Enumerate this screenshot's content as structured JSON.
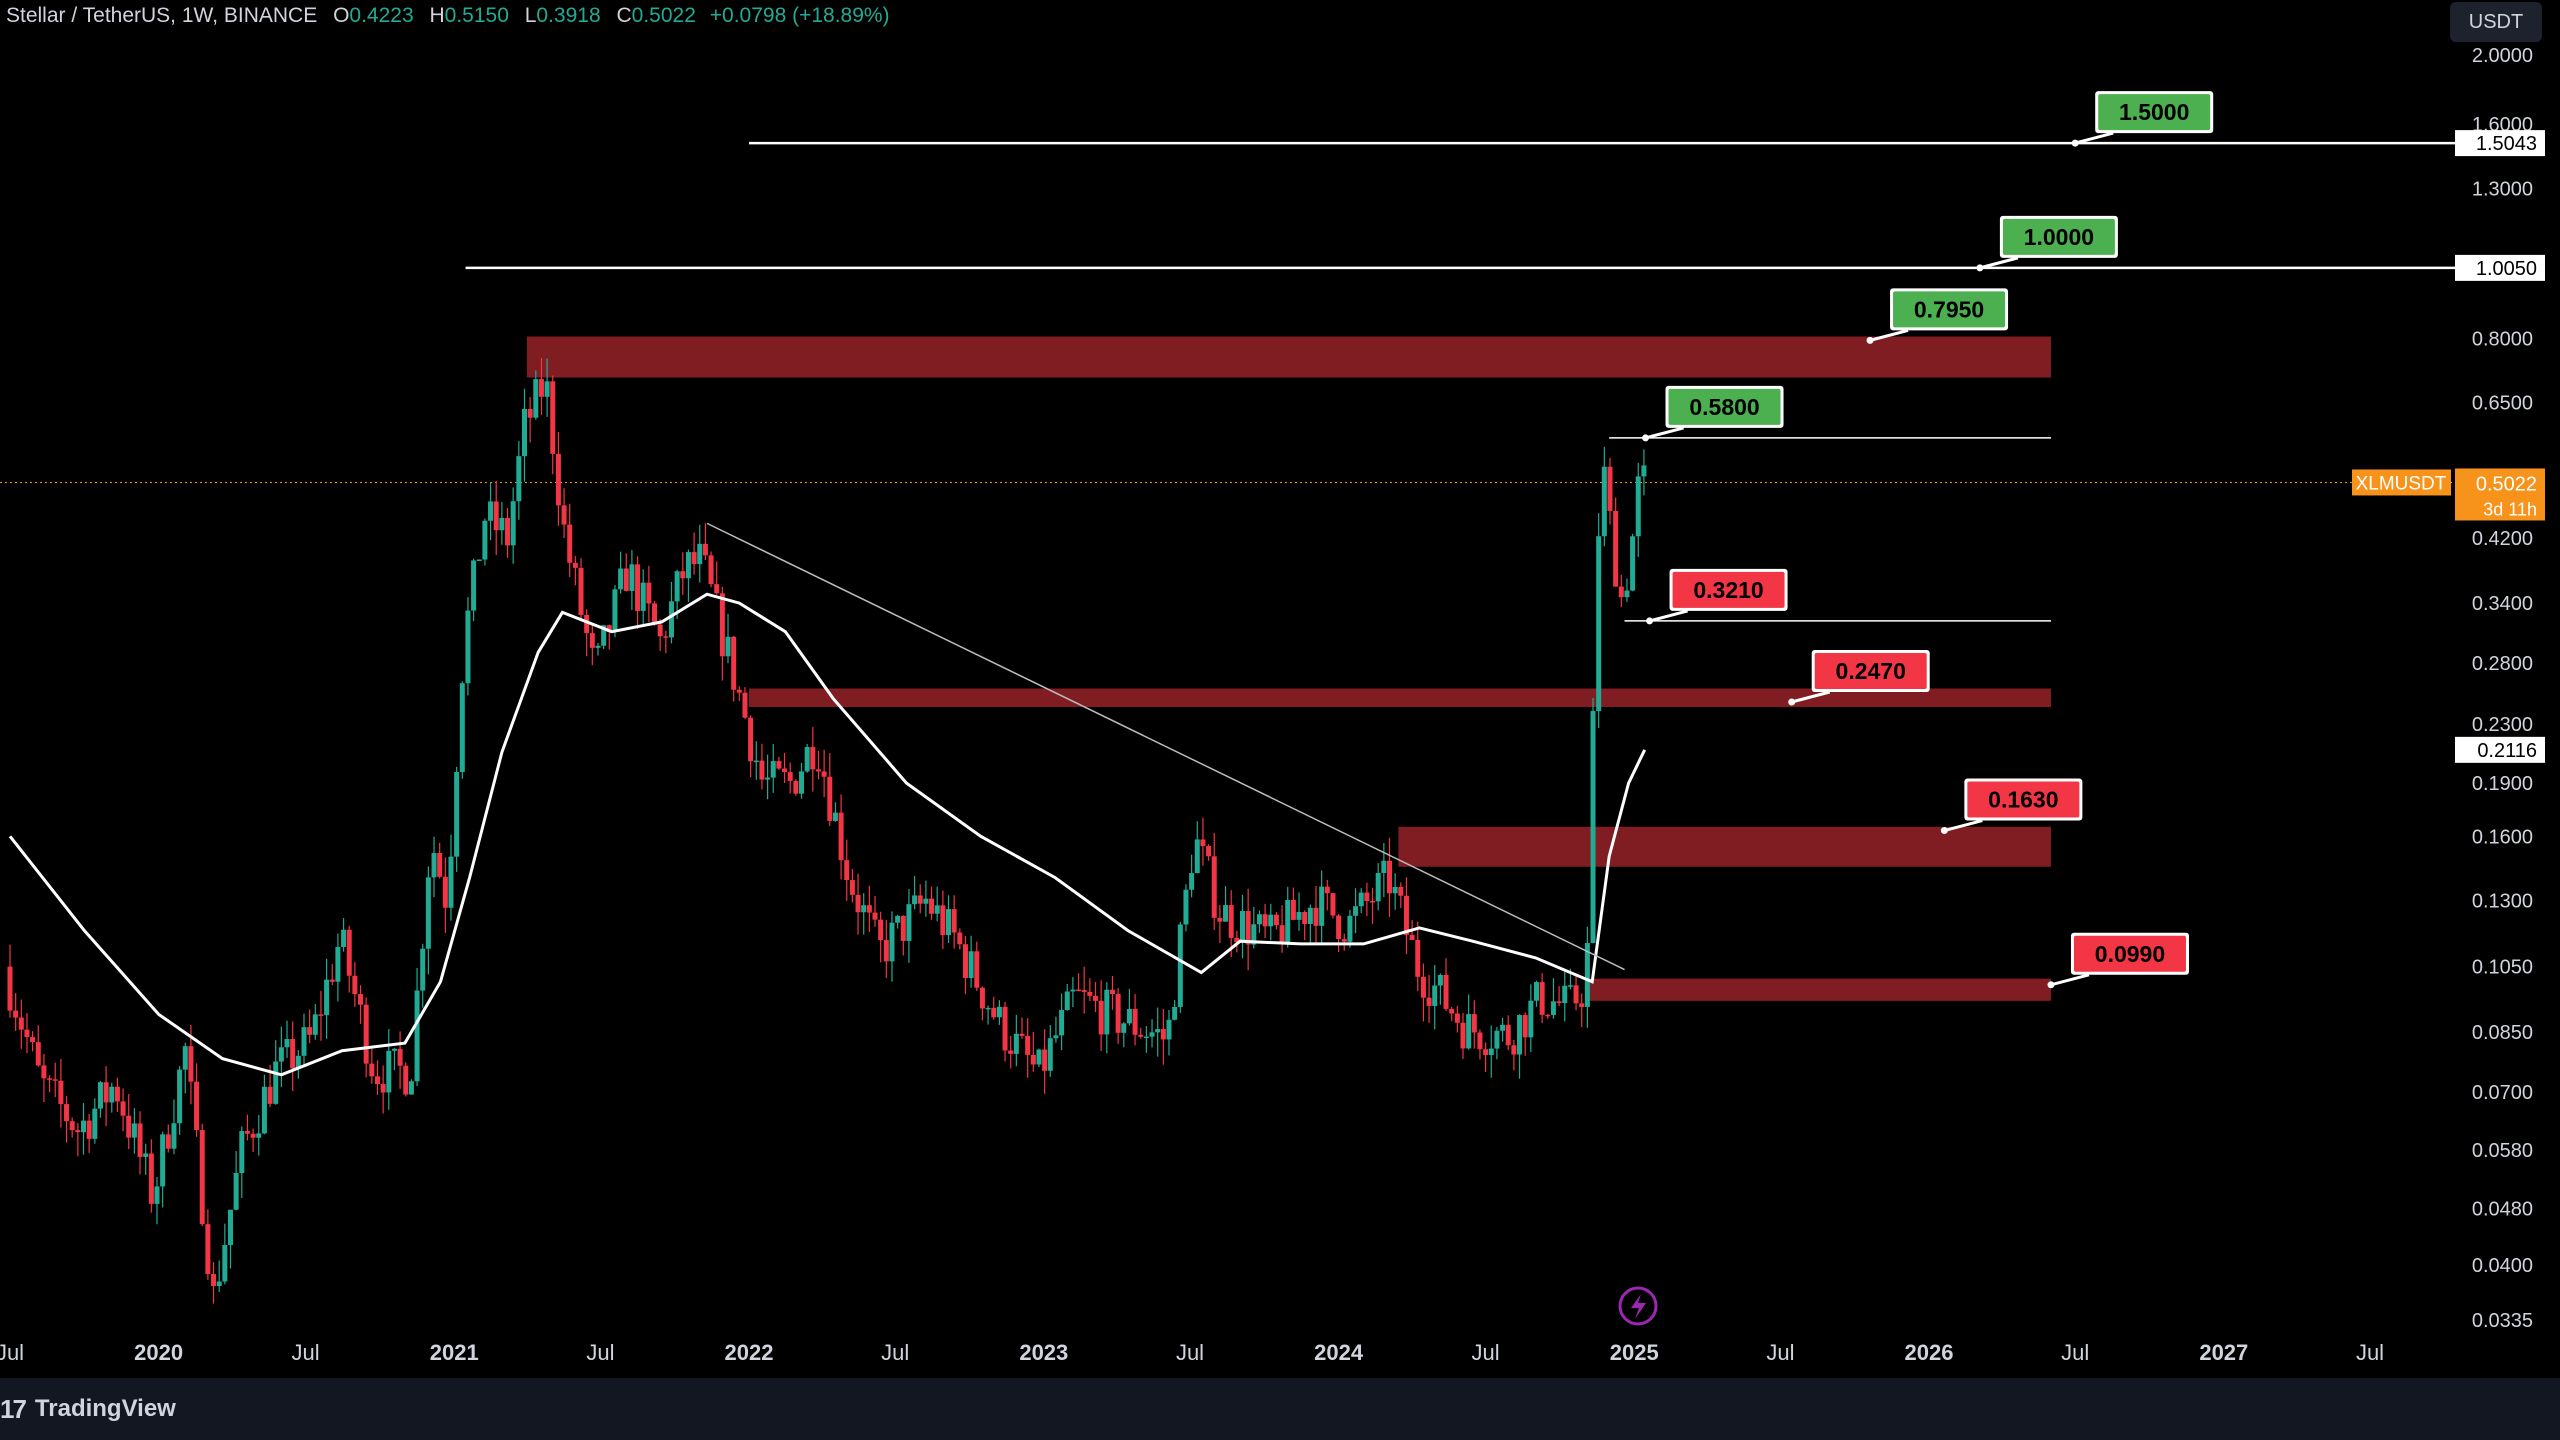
{
  "header": {
    "symbol": "Stellar / TetherUS, 1W, BINANCE",
    "open_label": "O",
    "open": "0.4223",
    "high_label": "H",
    "high": "0.5150",
    "low_label": "L",
    "low": "0.3918",
    "close_label": "C",
    "close": "0.5022",
    "change": "+0.0798 (+18.89%)"
  },
  "currency_button": "USDT",
  "footer": {
    "brand": "TradingView",
    "logo_mark": "17"
  },
  "colors": {
    "up": "#22ab94",
    "down": "#f23645",
    "zone": "#7f1d22",
    "target_green": "#4caf50",
    "target_red": "#f23645",
    "price_tag": "#f7931a",
    "ma": "#ffffff"
  },
  "chart_data": {
    "type": "candlestick",
    "title": "Stellar / TetherUS, 1W, BINANCE",
    "ylim": [
      0.0335,
      2.0
    ],
    "log_scale": true,
    "y_ticks": [
      "2.0000",
      "1.6000",
      "1.3000",
      "1.0050",
      "0.8000",
      "0.6500",
      "0.5022",
      "0.4200",
      "0.3400",
      "0.2800",
      "0.2300",
      "0.2116",
      "0.1900",
      "0.1600",
      "0.1300",
      "0.1050",
      "0.0850",
      "0.0700",
      "0.0580",
      "0.0480",
      "0.0400",
      "0.0335"
    ],
    "x_ticks": [
      {
        "date": "2019-07-01",
        "label": "Jul"
      },
      {
        "date": "2020-01-01",
        "label": "2020"
      },
      {
        "date": "2020-07-01",
        "label": "Jul"
      },
      {
        "date": "2021-01-01",
        "label": "2021"
      },
      {
        "date": "2021-07-01",
        "label": "Jul"
      },
      {
        "date": "2022-01-01",
        "label": "2022"
      },
      {
        "date": "2022-07-01",
        "label": "Jul"
      },
      {
        "date": "2023-01-01",
        "label": "2023"
      },
      {
        "date": "2023-07-01",
        "label": "Jul"
      },
      {
        "date": "2024-01-01",
        "label": "2024"
      },
      {
        "date": "2024-07-01",
        "label": "Jul"
      },
      {
        "date": "2025-01-01",
        "label": "2025"
      },
      {
        "date": "2025-07-01",
        "label": "Jul"
      },
      {
        "date": "2026-01-01",
        "label": "2026"
      },
      {
        "date": "2026-07-01",
        "label": "Jul"
      },
      {
        "date": "2027-01-01",
        "label": "2027"
      },
      {
        "date": "2027-07-01",
        "label": "Jul"
      }
    ],
    "price_path": [
      [
        "2019-07-01",
        0.105
      ],
      [
        "2019-08-15",
        0.072
      ],
      [
        "2019-10-01",
        0.062
      ],
      [
        "2019-11-15",
        0.072
      ],
      [
        "2020-01-01",
        0.05
      ],
      [
        "2020-02-10",
        0.08
      ],
      [
        "2020-03-16",
        0.036
      ],
      [
        "2020-04-20",
        0.058
      ],
      [
        "2020-06-01",
        0.075
      ],
      [
        "2020-07-15",
        0.083
      ],
      [
        "2020-08-20",
        0.115
      ],
      [
        "2020-10-01",
        0.075
      ],
      [
        "2020-11-15",
        0.075
      ],
      [
        "2020-12-10",
        0.16
      ],
      [
        "2020-12-30",
        0.13
      ],
      [
        "2021-01-20",
        0.3
      ],
      [
        "2021-02-15",
        0.45
      ],
      [
        "2021-03-15",
        0.42
      ],
      [
        "2021-04-05",
        0.6
      ],
      [
        "2021-05-01",
        0.7
      ],
      [
        "2021-05-25",
        0.42
      ],
      [
        "2021-07-01",
        0.27
      ],
      [
        "2021-08-10",
        0.38
      ],
      [
        "2021-09-20",
        0.3
      ],
      [
        "2021-10-20",
        0.38
      ],
      [
        "2021-11-10",
        0.39
      ],
      [
        "2021-12-20",
        0.27
      ],
      [
        "2022-01-25",
        0.19
      ],
      [
        "2022-03-01",
        0.19
      ],
      [
        "2022-04-01",
        0.22
      ],
      [
        "2022-05-12",
        0.14
      ],
      [
        "2022-06-18",
        0.11
      ],
      [
        "2022-08-15",
        0.13
      ],
      [
        "2022-09-20",
        0.115
      ],
      [
        "2022-11-15",
        0.087
      ],
      [
        "2023-01-01",
        0.074
      ],
      [
        "2023-02-15",
        0.095
      ],
      [
        "2023-04-01",
        0.09
      ],
      [
        "2023-06-10",
        0.083
      ],
      [
        "2023-07-13",
        0.16
      ],
      [
        "2023-08-15",
        0.125
      ],
      [
        "2023-10-15",
        0.115
      ],
      [
        "2023-12-10",
        0.13
      ],
      [
        "2024-01-20",
        0.12
      ],
      [
        "2024-03-10",
        0.14
      ],
      [
        "2024-04-15",
        0.105
      ],
      [
        "2024-06-15",
        0.086
      ],
      [
        "2024-08-05",
        0.084
      ],
      [
        "2024-09-15",
        0.095
      ],
      [
        "2024-10-20",
        0.092
      ],
      [
        "2024-11-10",
        0.1
      ],
      [
        "2024-11-24",
        0.42
      ],
      [
        "2024-12-01",
        0.52
      ],
      [
        "2024-12-10",
        0.43
      ],
      [
        "2024-12-24",
        0.34
      ],
      [
        "2025-01-06",
        0.42
      ],
      [
        "2025-01-14",
        0.502
      ]
    ],
    "moving_average": [
      [
        "2019-07-01",
        0.16
      ],
      [
        "2019-10-01",
        0.118
      ],
      [
        "2020-01-01",
        0.09
      ],
      [
        "2020-03-20",
        0.078
      ],
      [
        "2020-06-01",
        0.074
      ],
      [
        "2020-08-15",
        0.08
      ],
      [
        "2020-11-01",
        0.082
      ],
      [
        "2020-12-15",
        0.1
      ],
      [
        "2021-01-20",
        0.14
      ],
      [
        "2021-03-01",
        0.21
      ],
      [
        "2021-04-15",
        0.29
      ],
      [
        "2021-05-15",
        0.33
      ],
      [
        "2021-07-15",
        0.31
      ],
      [
        "2021-09-15",
        0.32
      ],
      [
        "2021-11-10",
        0.35
      ],
      [
        "2021-12-20",
        0.34
      ],
      [
        "2022-02-15",
        0.31
      ],
      [
        "2022-04-15",
        0.25
      ],
      [
        "2022-07-15",
        0.19
      ],
      [
        "2022-10-15",
        0.16
      ],
      [
        "2023-01-15",
        0.14
      ],
      [
        "2023-04-15",
        0.118
      ],
      [
        "2023-07-15",
        0.103
      ],
      [
        "2023-09-01",
        0.114
      ],
      [
        "2023-11-15",
        0.113
      ],
      [
        "2024-02-01",
        0.113
      ],
      [
        "2024-04-10",
        0.119
      ],
      [
        "2024-06-15",
        0.114
      ],
      [
        "2024-09-01",
        0.108
      ],
      [
        "2024-11-10",
        0.1
      ],
      [
        "2024-12-01",
        0.15
      ],
      [
        "2024-12-25",
        0.19
      ],
      [
        "2025-01-14",
        0.2116
      ]
    ],
    "resistance_lines": [
      {
        "value": 1.5043,
        "from": "2022-01-01",
        "label": "1.5043"
      },
      {
        "value": 1.005,
        "from": "2021-01-15",
        "label": "1.0050"
      }
    ],
    "short_lines": [
      {
        "value": 0.58,
        "from": "2024-12-01",
        "to": "2026-06-01"
      },
      {
        "value": 0.321,
        "from": "2024-12-20",
        "to": "2026-06-01"
      }
    ],
    "zones": [
      {
        "from": "2021-04-01",
        "to": "2026-06-01",
        "low": 0.705,
        "high": 0.805
      },
      {
        "from": "2022-01-01",
        "to": "2026-06-01",
        "low": 0.243,
        "high": 0.258
      },
      {
        "from": "2024-03-15",
        "to": "2026-06-01",
        "low": 0.145,
        "high": 0.165
      },
      {
        "from": "2024-11-01",
        "to": "2026-06-01",
        "low": 0.094,
        "high": 0.101
      }
    ],
    "trendline": {
      "from": [
        "2021-11-10",
        0.44
      ],
      "to": [
        "2024-12-20",
        0.104
      ]
    },
    "targets": [
      {
        "label": "1.5000",
        "kind": "green",
        "anchor": [
          "2026-07-01",
          1.5043
        ]
      },
      {
        "label": "1.0000",
        "kind": "green",
        "anchor": [
          "2026-03-05",
          1.005
        ]
      },
      {
        "label": "0.7950",
        "kind": "green",
        "anchor": [
          "2025-10-20",
          0.795
        ]
      },
      {
        "label": "0.5800",
        "kind": "green",
        "anchor": [
          "2025-01-15",
          0.58
        ]
      },
      {
        "label": "0.3210",
        "kind": "red",
        "anchor": [
          "2025-01-20",
          0.321
        ]
      },
      {
        "label": "0.2470",
        "kind": "red",
        "anchor": [
          "2025-07-15",
          0.247
        ]
      },
      {
        "label": "0.1630",
        "kind": "red",
        "anchor": [
          "2026-01-20",
          0.163
        ]
      },
      {
        "label": "0.0990",
        "kind": "red",
        "anchor": [
          "2026-06-01",
          0.099
        ]
      }
    ],
    "last_price": {
      "symbol": "XLMUSDT",
      "value": "0.5022",
      "countdown": "3d 11h"
    },
    "ma_value": "0.2116"
  }
}
